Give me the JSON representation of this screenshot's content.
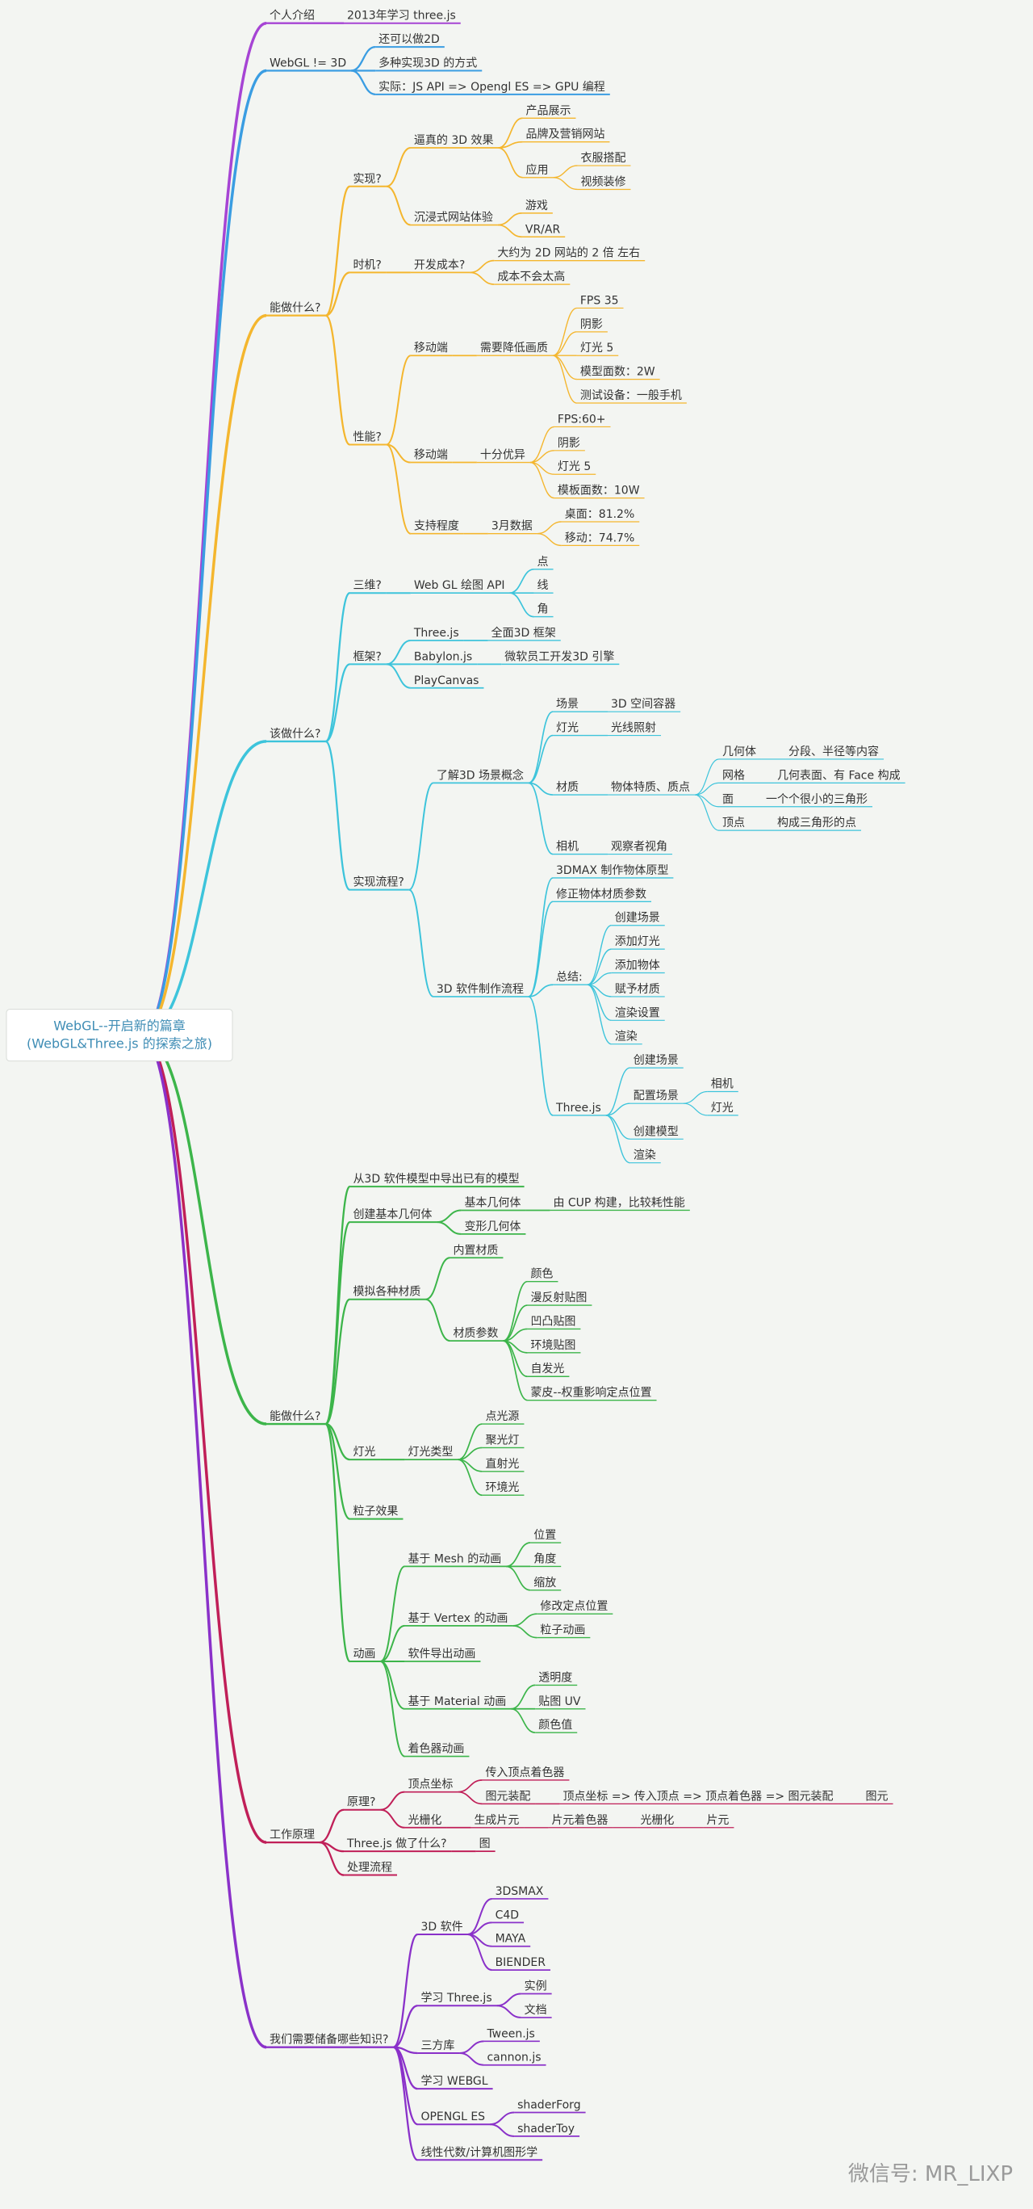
{
  "root": {
    "label_lines": [
      "WebGL--开启新的篇章",
      "(WebGL&Three.js 的探索之旅)"
    ],
    "children": [
      {
        "label": "个人介绍",
        "children": [
          {
            "label": "2013年学习 three.js"
          }
        ]
      },
      {
        "label": "WebGL != 3D",
        "children": [
          {
            "label": "还可以做2D"
          },
          {
            "label": "多种实现3D 的方式"
          },
          {
            "label": "实际：JS API => Opengl ES => GPU 编程"
          }
        ]
      },
      {
        "label": "能做什么?",
        "children": [
          {
            "label": "实现?",
            "children": [
              {
                "label": "逼真的 3D 效果",
                "children": [
                  {
                    "label": "产品展示"
                  },
                  {
                    "label": "品牌及营销网站"
                  },
                  {
                    "label": "应用",
                    "children": [
                      {
                        "label": "衣服搭配"
                      },
                      {
                        "label": "视频装修"
                      }
                    ]
                  }
                ]
              },
              {
                "label": "沉浸式网站体验",
                "children": [
                  {
                    "label": "游戏"
                  },
                  {
                    "label": "VR/AR"
                  }
                ]
              }
            ]
          },
          {
            "label": "时机?",
            "children": [
              {
                "label": "开发成本?",
                "children": [
                  {
                    "label": "大约为 2D 网站的 2 倍 左右"
                  },
                  {
                    "label": "成本不会太高"
                  }
                ]
              }
            ]
          },
          {
            "label": "性能?",
            "children": [
              {
                "label": "移动端",
                "children": [
                  {
                    "label": "需要降低画质",
                    "children": [
                      {
                        "label": "FPS 35"
                      },
                      {
                        "label": "阴影"
                      },
                      {
                        "label": "灯光 5"
                      },
                      {
                        "label": "模型面数：2W"
                      },
                      {
                        "label": "测试设备：一般手机"
                      }
                    ]
                  }
                ]
              },
              {
                "label": "移动端",
                "children": [
                  {
                    "label": "十分优异",
                    "children": [
                      {
                        "label": "FPS:60+"
                      },
                      {
                        "label": "阴影"
                      },
                      {
                        "label": "灯光 5"
                      },
                      {
                        "label": "模板面数：10W"
                      }
                    ]
                  }
                ]
              },
              {
                "label": "支持程度",
                "children": [
                  {
                    "label": "3月数据",
                    "children": [
                      {
                        "label": "桌面：81.2%"
                      },
                      {
                        "label": "移动：74.7%"
                      }
                    ]
                  }
                ]
              }
            ]
          }
        ]
      },
      {
        "label": "该做什么?",
        "children": [
          {
            "label": "三维?",
            "children": [
              {
                "label": "Web GL 绘图 API",
                "children": [
                  {
                    "label": "点"
                  },
                  {
                    "label": "线"
                  },
                  {
                    "label": "角"
                  }
                ]
              }
            ]
          },
          {
            "label": "框架?",
            "children": [
              {
                "label": "Three.js",
                "children": [
                  {
                    "label": "全面3D 框架"
                  }
                ]
              },
              {
                "label": "Babylon.js",
                "children": [
                  {
                    "label": "微软员工开发3D 引擎"
                  }
                ]
              },
              {
                "label": "PlayCanvas"
              }
            ]
          },
          {
            "label": "实现流程?",
            "children": [
              {
                "label": "了解3D 场景概念",
                "children": [
                  {
                    "label": "场景",
                    "children": [
                      {
                        "label": "3D 空间容器"
                      }
                    ]
                  },
                  {
                    "label": "灯光",
                    "children": [
                      {
                        "label": "光线照射"
                      }
                    ]
                  },
                  {
                    "label": "材质",
                    "children": [
                      {
                        "label": "物体特质、质点",
                        "children": [
                          {
                            "label": "几何体",
                            "children": [
                              {
                                "label": "分段、半径等内容"
                              }
                            ]
                          },
                          {
                            "label": "网格",
                            "children": [
                              {
                                "label": "几何表面、有 Face 构成"
                              }
                            ]
                          },
                          {
                            "label": "面",
                            "children": [
                              {
                                "label": "一个个很小的三角形"
                              }
                            ]
                          },
                          {
                            "label": "顶点",
                            "children": [
                              {
                                "label": "构成三角形的点"
                              }
                            ]
                          }
                        ]
                      }
                    ]
                  },
                  {
                    "label": "相机",
                    "children": [
                      {
                        "label": "观察者视角"
                      }
                    ]
                  }
                ]
              },
              {
                "label": "3D 软件制作流程",
                "children": [
                  {
                    "label": "3DMAX 制作物体原型"
                  },
                  {
                    "label": "修正物体材质参数"
                  },
                  {
                    "label": "总结:",
                    "children": [
                      {
                        "label": "创建场景"
                      },
                      {
                        "label": "添加灯光"
                      },
                      {
                        "label": "添加物体"
                      },
                      {
                        "label": "赋予材质"
                      },
                      {
                        "label": "渲染设置"
                      },
                      {
                        "label": "渲染"
                      }
                    ]
                  },
                  {
                    "label": "Three.js",
                    "children": [
                      {
                        "label": "创建场景"
                      },
                      {
                        "label": "配置场景",
                        "children": [
                          {
                            "label": "相机"
                          },
                          {
                            "label": "灯光"
                          }
                        ]
                      },
                      {
                        "label": "创建模型"
                      },
                      {
                        "label": "渲染"
                      }
                    ]
                  }
                ]
              }
            ]
          }
        ]
      },
      {
        "label": "能做什么?",
        "children": [
          {
            "label": "从3D 软件模型中导出已有的模型"
          },
          {
            "label": "创建基本几何体",
            "children": [
              {
                "label": "基本几何体",
                "children": [
                  {
                    "label": "由 CUP 构建，比较耗性能"
                  }
                ]
              },
              {
                "label": "变形几何体"
              }
            ]
          },
          {
            "label": "模拟各种材质",
            "children": [
              {
                "label": "内置材质"
              },
              {
                "label": "材质参数",
                "children": [
                  {
                    "label": "颜色"
                  },
                  {
                    "label": "漫反射贴图"
                  },
                  {
                    "label": "凹凸贴图"
                  },
                  {
                    "label": "环境贴图"
                  },
                  {
                    "label": "自发光"
                  },
                  {
                    "label": "蒙皮--权重影响定点位置"
                  }
                ]
              }
            ]
          },
          {
            "label": "灯光",
            "children": [
              {
                "label": "灯光类型",
                "children": [
                  {
                    "label": "点光源"
                  },
                  {
                    "label": "聚光灯"
                  },
                  {
                    "label": "直射光"
                  },
                  {
                    "label": "环境光"
                  }
                ]
              }
            ]
          },
          {
            "label": "粒子效果"
          },
          {
            "label": "动画",
            "children": [
              {
                "label": "基于 Mesh 的动画",
                "children": [
                  {
                    "label": "位置"
                  },
                  {
                    "label": "角度"
                  },
                  {
                    "label": "缩放"
                  }
                ]
              },
              {
                "label": "基于 Vertex 的动画",
                "children": [
                  {
                    "label": "修改定点位置"
                  },
                  {
                    "label": "粒子动画"
                  }
                ]
              },
              {
                "label": "软件导出动画"
              },
              {
                "label": "基于 Material 动画",
                "children": [
                  {
                    "label": "透明度"
                  },
                  {
                    "label": "贴图 UV"
                  },
                  {
                    "label": "颜色值"
                  }
                ]
              },
              {
                "label": "着色器动画"
              }
            ]
          }
        ]
      },
      {
        "label": "工作原理",
        "children": [
          {
            "label": "原理?",
            "children": [
              {
                "label": "顶点坐标",
                "children": [
                  {
                    "label": "传入顶点着色器"
                  },
                  {
                    "label": "图元装配",
                    "children": [
                      {
                        "label": "顶点坐标 => 传入顶点 => 顶点着色器 => 图元装配",
                        "children": [
                          {
                            "label": "图元"
                          }
                        ]
                      }
                    ]
                  }
                ]
              },
              {
                "label": "光栅化",
                "children": [
                  {
                    "label": "生成片元",
                    "children": [
                      {
                        "label": "片元着色器",
                        "children": [
                          {
                            "label": "光栅化",
                            "children": [
                              {
                                "label": "片元"
                              }
                            ]
                          }
                        ]
                      }
                    ]
                  }
                ]
              }
            ]
          },
          {
            "label": "Three.js 做了什么?",
            "children": [
              {
                "label": "图"
              }
            ]
          },
          {
            "label": "处理流程"
          }
        ]
      },
      {
        "label": "我们需要储备哪些知识?",
        "children": [
          {
            "label": "3D 软件",
            "children": [
              {
                "label": "3DSMAX"
              },
              {
                "label": "C4D"
              },
              {
                "label": "MAYA"
              },
              {
                "label": "BIENDER"
              }
            ]
          },
          {
            "label": "学习 Three.js",
            "children": [
              {
                "label": "实例"
              },
              {
                "label": "文档"
              }
            ]
          },
          {
            "label": "三方库",
            "children": [
              {
                "label": "Tween.js"
              },
              {
                "label": "cannon.js"
              }
            ]
          },
          {
            "label": "学习 WEBGL"
          },
          {
            "label": "OPENGL ES",
            "children": [
              {
                "label": "shaderForg"
              },
              {
                "label": "shaderToy"
              }
            ]
          },
          {
            "label": "线性代数/计算机图形学"
          }
        ]
      }
    ]
  },
  "watermark": "微信号: MR_LIXP"
}
